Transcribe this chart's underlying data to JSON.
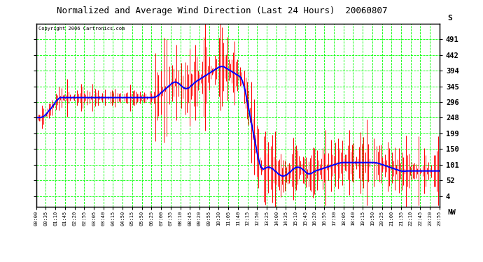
{
  "title": "Normalized and Average Wind Direction (Last 24 Hours)  20060807",
  "copyright": "Copyright 2006 Cartronics.com",
  "background_color": "#ffffff",
  "plot_bg_color": "#ffffff",
  "grid_color": "#00ff00",
  "yticks": [
    4,
    52,
    101,
    150,
    199,
    248,
    296,
    345,
    394,
    442,
    491
  ],
  "ylabels": [
    "4",
    "52",
    "101",
    "150",
    "199",
    "248",
    "296",
    "345",
    "394",
    "442",
    "491"
  ],
  "ytop_label": "S",
  "ybottom_label": "NW",
  "ymin": -30,
  "ymax": 540,
  "time_labels": [
    "00:00",
    "00:35",
    "01:10",
    "01:45",
    "02:20",
    "02:55",
    "03:05",
    "03:40",
    "04:15",
    "04:50",
    "05:15",
    "05:50",
    "06:25",
    "07:00",
    "07:35",
    "08:10",
    "08:45",
    "09:20",
    "09:55",
    "10:30",
    "11:05",
    "11:40",
    "12:15",
    "12:50",
    "13:25",
    "14:00",
    "14:35",
    "15:10",
    "15:45",
    "16:20",
    "16:55",
    "17:30",
    "18:05",
    "18:40",
    "19:15",
    "19:50",
    "20:25",
    "21:00",
    "21:35",
    "22:10",
    "22:45",
    "23:20",
    "23:55"
  ],
  "red_color": "#ff0000",
  "blue_color": "#0000ff",
  "n_points": 288,
  "seed": 12345
}
